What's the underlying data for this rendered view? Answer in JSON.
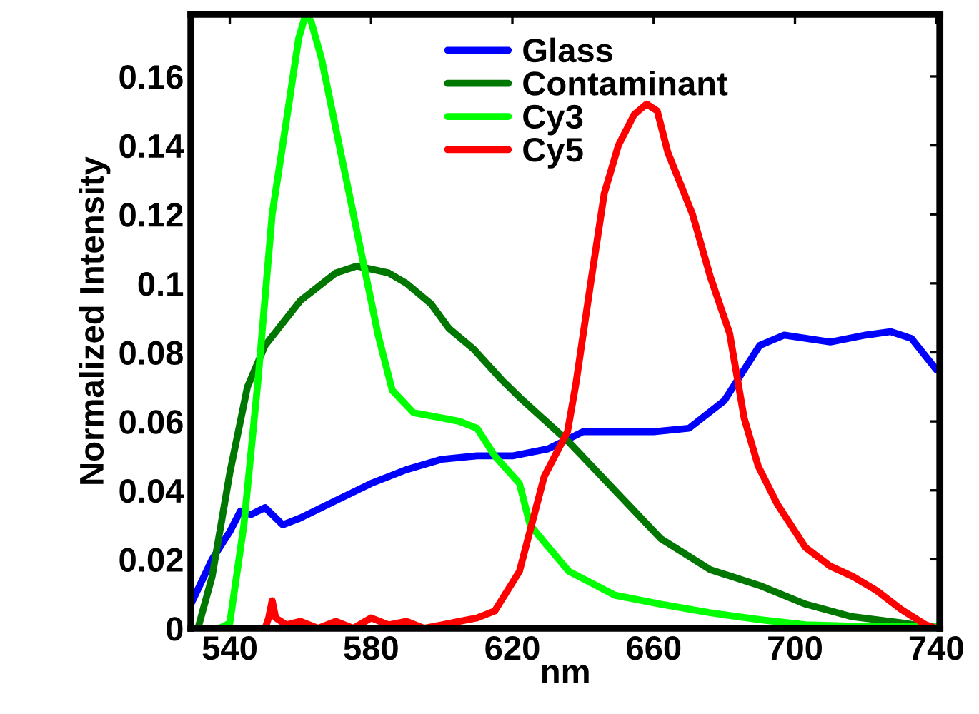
{
  "chart_data": {
    "type": "line",
    "xlabel": "nm",
    "ylabel": "Normalized Intensity",
    "xlim": [
      529,
      741
    ],
    "ylim": [
      0,
      0.178
    ],
    "xticks": [
      540,
      580,
      620,
      660,
      700,
      740
    ],
    "yticks": [
      0,
      0.02,
      0.04,
      0.06,
      0.08,
      {
        "value": 0.1,
        "label": "0.1"
      },
      0.12,
      0.14,
      0.16
    ],
    "grid": false,
    "legend": "top",
    "marker": "none",
    "line_style": "solid",
    "series": [
      {
        "name": "Glass",
        "color": "#0000ff",
        "x": [
          529,
          535,
          540,
          543,
          546,
          550,
          555,
          560,
          570,
          580,
          590,
          600,
          610,
          620,
          630,
          640,
          650,
          660,
          670,
          680,
          685,
          690,
          697,
          710,
          720,
          727,
          733,
          740
        ],
        "values": [
          0.007,
          0.02,
          0.028,
          0.034,
          0.033,
          0.035,
          0.03,
          0.032,
          0.037,
          0.042,
          0.046,
          0.049,
          0.05,
          0.05,
          0.052,
          0.057,
          0.057,
          0.057,
          0.058,
          0.066,
          0.074,
          0.082,
          0.085,
          0.083,
          0.085,
          0.086,
          0.084,
          0.075
        ]
      },
      {
        "name": "Contaminant",
        "color": "#007700",
        "x": [
          531,
          535,
          540,
          545,
          550,
          560,
          570,
          576,
          585,
          590,
          597,
          602,
          609,
          617,
          622,
          636,
          649,
          662,
          676,
          690,
          703,
          716,
          730,
          740
        ],
        "values": [
          0,
          0.015,
          0.045,
          0.07,
          0.082,
          0.095,
          0.103,
          0.105,
          0.103,
          0.1,
          0.094,
          0.087,
          0.081,
          0.072,
          0.067,
          0.054,
          0.04,
          0.026,
          0.017,
          0.0124,
          0.007,
          0.0034,
          0.0016,
          0
        ]
      },
      {
        "name": "Cy3",
        "color": "#00ff00",
        "x": [
          529,
          537,
          540,
          544,
          548,
          552,
          556,
          559.5,
          561.5,
          563,
          566,
          570,
          575,
          582,
          586,
          592,
          600,
          605,
          610,
          615,
          622,
          625,
          629,
          636,
          649,
          662,
          676,
          690,
          703,
          720,
          740
        ],
        "values": [
          0,
          0,
          0.0015,
          0.03,
          0.072,
          0.12,
          0.147,
          0.171,
          0.178,
          0.176,
          0.165,
          0.145,
          0.12,
          0.085,
          0.069,
          0.0625,
          0.061,
          0.06,
          0.058,
          0.05,
          0.042,
          0.03,
          0.025,
          0.0165,
          0.0096,
          0.007,
          0.0045,
          0.0025,
          0.001,
          0.0005,
          0.0005
        ]
      },
      {
        "name": "Cy5",
        "color": "#ff0000",
        "x": [
          529,
          550,
          551,
          552,
          553,
          556,
          560,
          565,
          570,
          575,
          580,
          585,
          590,
          595,
          600,
          605,
          610,
          615,
          622,
          629,
          635.6,
          638,
          642,
          646,
          650,
          654.5,
          658,
          661,
          664,
          671,
          676,
          681.5,
          685.6,
          689.6,
          695,
          703,
          710,
          716.4,
          723,
          730,
          737,
          740
        ],
        "values": [
          0,
          0,
          0.003,
          0.008,
          0.003,
          0.001,
          0.002,
          0,
          0.002,
          0,
          0.003,
          0.001,
          0.002,
          0,
          0.001,
          0.002,
          0.003,
          0.005,
          0.0165,
          0.044,
          0.057,
          0.071,
          0.099,
          0.126,
          0.14,
          0.149,
          0.152,
          0.15,
          0.138,
          0.12,
          0.102,
          0.0855,
          0.061,
          0.047,
          0.036,
          0.0234,
          0.018,
          0.015,
          0.011,
          0.0055,
          0.001,
          0
        ]
      }
    ]
  }
}
